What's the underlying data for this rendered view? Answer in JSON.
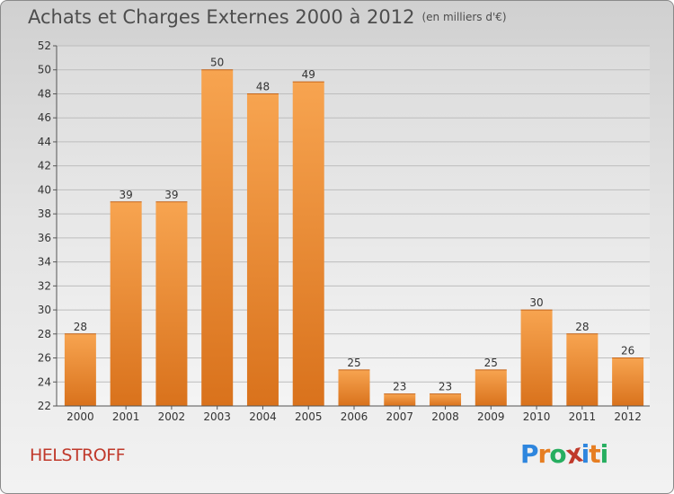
{
  "header": {
    "title": "Achats et Charges Externes 2000 à 2012",
    "unit_note": "(en milliers d'€)"
  },
  "footer": {
    "commune": "HELSTROFF",
    "logo_text": "Proxiti",
    "logo_letters": [
      "P",
      "r",
      "o",
      "x",
      "i",
      "t",
      "i"
    ],
    "logo_colors": [
      "#2e86de",
      "#e67e22",
      "#27ae60",
      "#c0392b",
      "#2e86de",
      "#e67e22",
      "#27ae60"
    ]
  },
  "chart_data": {
    "type": "bar",
    "categories": [
      "2000",
      "2001",
      "2002",
      "2003",
      "2004",
      "2005",
      "2006",
      "2007",
      "2008",
      "2009",
      "2010",
      "2011",
      "2012"
    ],
    "values": [
      28,
      39,
      39,
      50,
      48,
      49,
      25,
      23,
      23,
      25,
      30,
      28,
      26
    ],
    "ylim": [
      22,
      52
    ],
    "yticks": [
      22,
      24,
      26,
      28,
      30,
      32,
      34,
      36,
      38,
      40,
      42,
      44,
      46,
      48,
      50,
      52
    ],
    "grid": true,
    "bar_color_top": "#f7a450",
    "bar_color_bottom": "#d9721c"
  }
}
